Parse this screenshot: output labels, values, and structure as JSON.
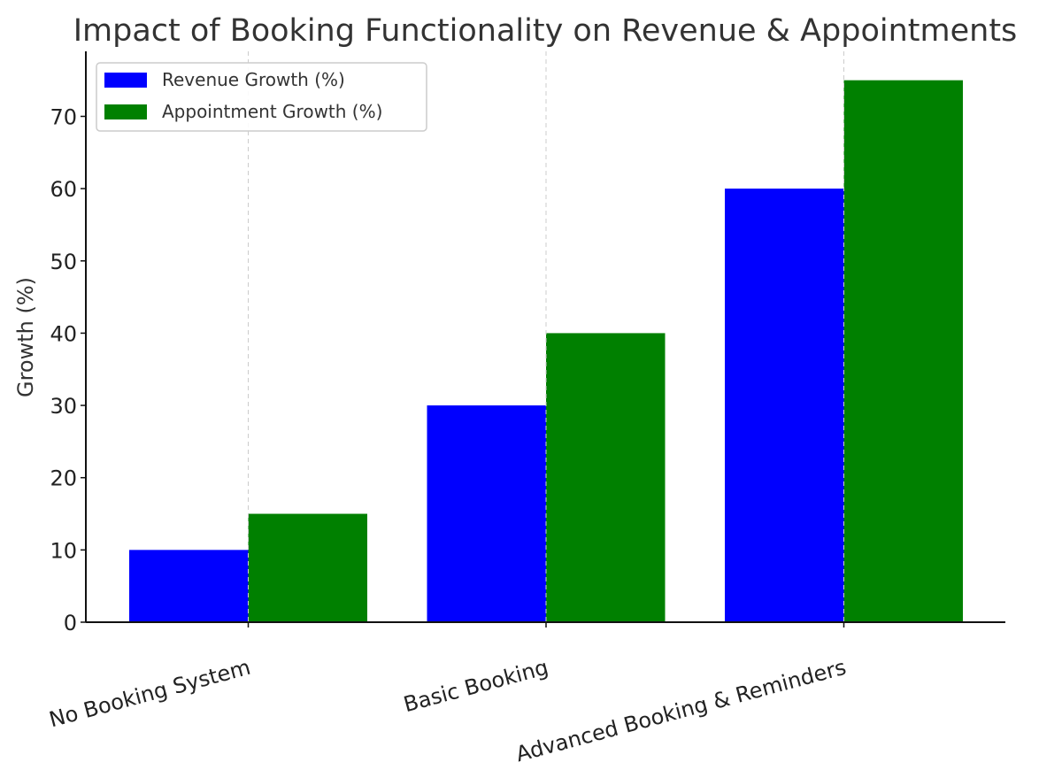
{
  "chart_data": {
    "type": "bar",
    "title": "Impact of Booking Functionality on Revenue & Appointments",
    "xlabel": "",
    "ylabel": "Growth (%)",
    "categories": [
      "No Booking System",
      "Basic Booking",
      "Advanced Booking & Reminders"
    ],
    "series": [
      {
        "name": "Revenue Growth (%)",
        "color": "#0000ff",
        "values": [
          10,
          30,
          60
        ]
      },
      {
        "name": "Appointment Growth (%)",
        "color": "#008000",
        "values": [
          15,
          40,
          75
        ]
      }
    ],
    "ylim": [
      0,
      79
    ],
    "yticks": [
      0,
      10,
      20,
      30,
      40,
      50,
      60,
      70
    ],
    "grid": "x-dashed",
    "legend_position": "top-left"
  }
}
